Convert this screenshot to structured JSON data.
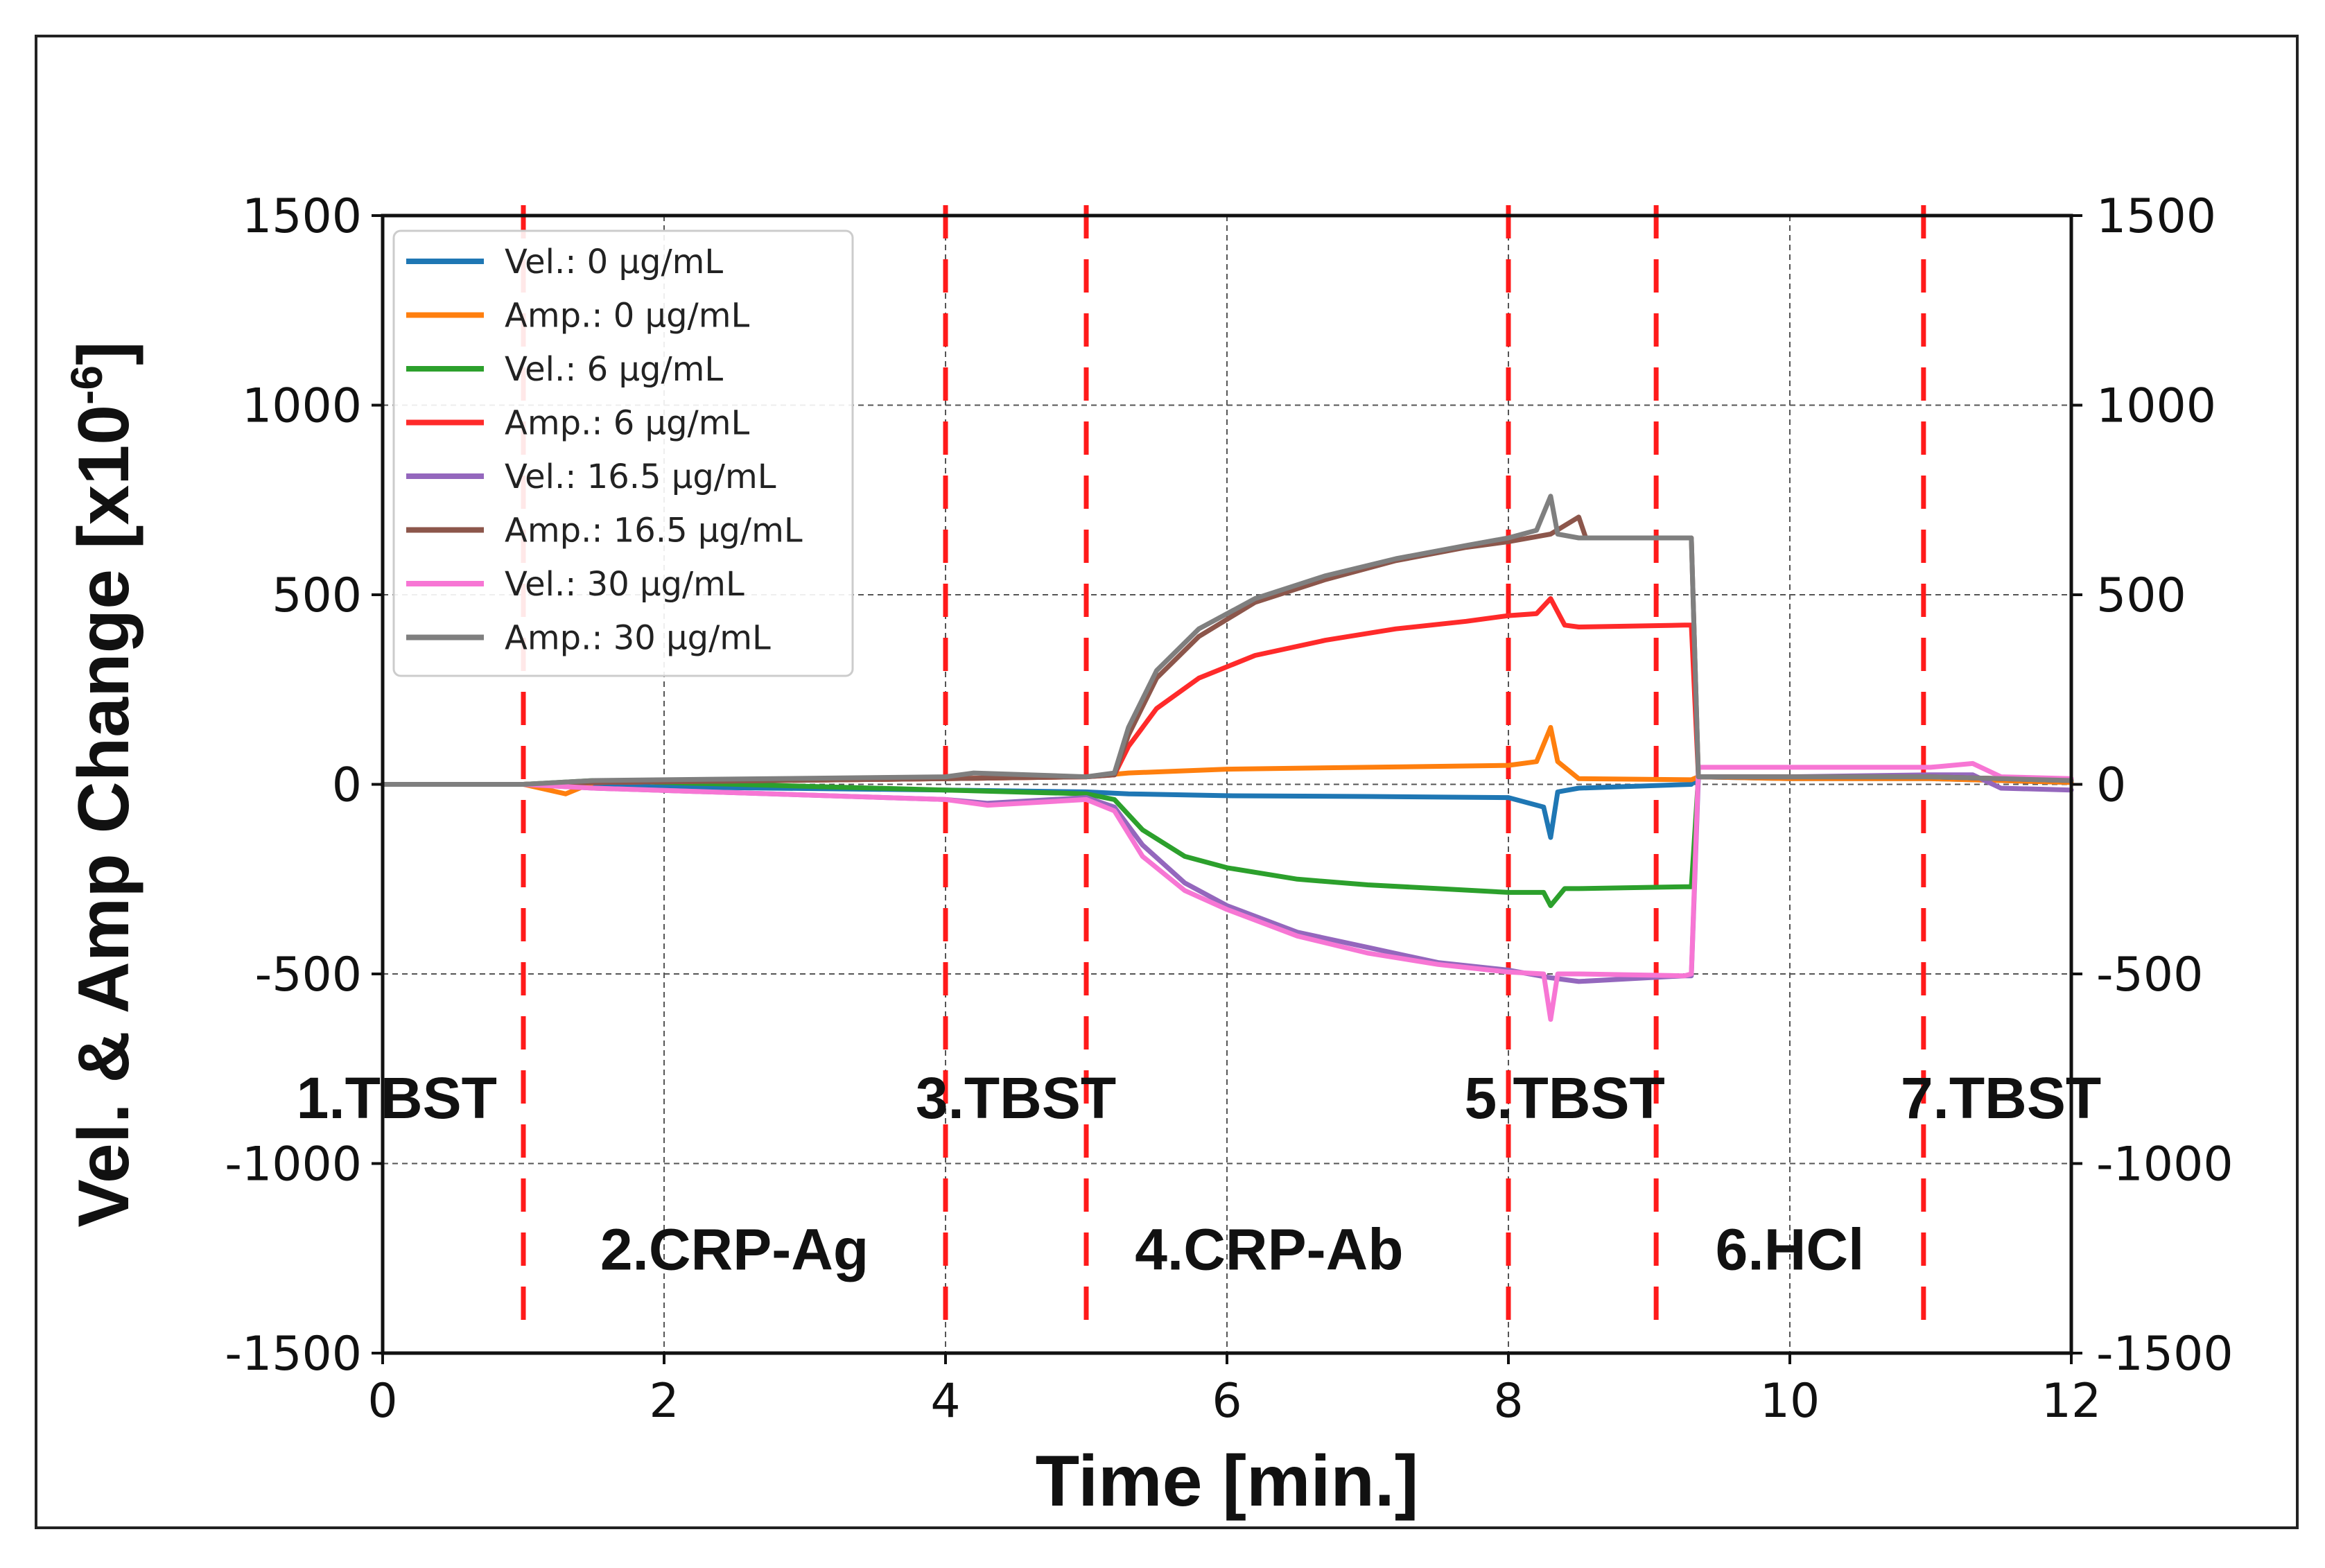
{
  "chart_data": {
    "type": "line",
    "xlabel": "Time [min.]",
    "ylabel_text": "Vel. & Amp Change [x10",
    "ylabel_exp": "-6",
    "ylabel_close": "]",
    "xlim": [
      0,
      12
    ],
    "ylim": [
      -1500,
      1500
    ],
    "x_ticks": [
      0,
      2,
      4,
      6,
      8,
      10,
      12
    ],
    "y_ticks": [
      -1500,
      -1000,
      -500,
      0,
      500,
      1000,
      1500
    ],
    "x_tick_labels": [
      "0",
      "2",
      "4",
      "6",
      "8",
      "10",
      "12"
    ],
    "y_tick_labels": [
      "-1500",
      "-1000",
      "-500",
      "0",
      "500",
      "1000",
      "1500"
    ],
    "grid": true,
    "legend_position": "top-left",
    "phase_boundaries": [
      1,
      4,
      5,
      8,
      9.05,
      10.95
    ],
    "boundary_color": "#ff1a1a",
    "phase_labels": [
      {
        "text": "1.TBST",
        "x": 0.1,
        "y": -880
      },
      {
        "text": "2.CRP-Ag",
        "x": 2.5,
        "y": -1280
      },
      {
        "text": "3.TBST",
        "x": 4.5,
        "y": -880
      },
      {
        "text": "4.CRP-Ab",
        "x": 6.3,
        "y": -1280
      },
      {
        "text": "5.TBST",
        "x": 8.4,
        "y": -880
      },
      {
        "text": "6.HCl",
        "x": 10.0,
        "y": -1280
      },
      {
        "text": "7.TBST",
        "x": 11.5,
        "y": -880
      }
    ],
    "series": [
      {
        "name": "Vel.: 0 μg/mL",
        "color": "#1f77b4",
        "x": [
          0,
          1,
          1.5,
          4,
          5,
          5.3,
          6,
          7,
          8,
          8.25,
          8.3,
          8.35,
          8.5,
          9.3,
          9.35,
          10,
          11,
          11.5,
          12
        ],
        "y": [
          0,
          0,
          -5,
          -15,
          -20,
          -25,
          -30,
          -32,
          -35,
          -60,
          -140,
          -20,
          -10,
          0,
          20,
          15,
          15,
          10,
          5
        ]
      },
      {
        "name": "Amp.: 0 μg/mL",
        "color": "#ff7f0e",
        "x": [
          0,
          1,
          1.3,
          1.5,
          4,
          5,
          5.3,
          6,
          7,
          8,
          8.2,
          8.3,
          8.35,
          8.5,
          9.3,
          9.35,
          10,
          11,
          11.5,
          12
        ],
        "y": [
          0,
          0,
          -25,
          5,
          15,
          20,
          30,
          40,
          45,
          50,
          60,
          150,
          60,
          15,
          12,
          20,
          15,
          15,
          10,
          5
        ]
      },
      {
        "name": "Vel.: 6 μg/mL",
        "color": "#2ca02c",
        "x": [
          0,
          1,
          1.5,
          4,
          5,
          5.2,
          5.4,
          5.7,
          6,
          6.5,
          7,
          7.5,
          8,
          8.25,
          8.3,
          8.4,
          8.5,
          9.25,
          9.3,
          9.35,
          10,
          11,
          11.5,
          12
        ],
        "y": [
          0,
          0,
          10,
          -15,
          -25,
          -40,
          -120,
          -190,
          -220,
          -250,
          -265,
          -275,
          -285,
          -285,
          -320,
          -275,
          -275,
          -270,
          -270,
          20,
          20,
          20,
          15,
          10
        ]
      },
      {
        "name": "Amp.: 6 μg/mL",
        "color": "#ff2a2a",
        "x": [
          0,
          1,
          1.5,
          4,
          5,
          5.2,
          5.3,
          5.5,
          5.8,
          6.2,
          6.7,
          7.2,
          7.7,
          8,
          8.2,
          8.3,
          8.4,
          8.5,
          9.25,
          9.3,
          9.35,
          10,
          11,
          11.5,
          12
        ],
        "y": [
          0,
          0,
          5,
          15,
          20,
          25,
          100,
          200,
          280,
          340,
          380,
          410,
          430,
          445,
          450,
          490,
          420,
          415,
          420,
          420,
          20,
          20,
          20,
          15,
          10
        ]
      },
      {
        "name": "Vel.: 16.5 μg/mL",
        "color": "#9467bd",
        "x": [
          0,
          1,
          1.5,
          4,
          4.3,
          5,
          5.2,
          5.4,
          5.7,
          6,
          6.5,
          7,
          7.5,
          8,
          8.3,
          8.5,
          9.25,
          9.3,
          9.35,
          10,
          11,
          11.3,
          11.5,
          12
        ],
        "y": [
          0,
          0,
          -10,
          -40,
          -50,
          -35,
          -60,
          -160,
          -260,
          -320,
          -390,
          -430,
          -470,
          -490,
          -510,
          -520,
          -505,
          -505,
          20,
          20,
          25,
          25,
          -10,
          -15
        ]
      },
      {
        "name": "Amp.: 16.5 μg/mL",
        "color": "#8c564b",
        "x": [
          0,
          1,
          1.5,
          4,
          5,
          5.2,
          5.3,
          5.5,
          5.8,
          6.2,
          6.7,
          7.2,
          7.7,
          8,
          8.3,
          8.5,
          8.55,
          8.6,
          9.25,
          9.3,
          9.35,
          10,
          11,
          11.5,
          12
        ],
        "y": [
          0,
          0,
          5,
          15,
          20,
          25,
          130,
          280,
          390,
          480,
          540,
          590,
          625,
          640,
          660,
          705,
          650,
          650,
          650,
          650,
          20,
          20,
          20,
          15,
          10
        ]
      },
      {
        "name": "Vel.: 30 μg/mL",
        "color": "#f776d4",
        "x": [
          0,
          1,
          1.5,
          4,
          4.3,
          5,
          5.2,
          5.4,
          5.7,
          6,
          6.5,
          7,
          7.5,
          8,
          8.25,
          8.3,
          8.35,
          8.5,
          9.25,
          9.3,
          9.35,
          10,
          11,
          11.3,
          11.5,
          12
        ],
        "y": [
          0,
          0,
          -10,
          -40,
          -55,
          -40,
          -70,
          -190,
          -280,
          -330,
          -400,
          -445,
          -475,
          -495,
          -500,
          -620,
          -500,
          -500,
          -505,
          -500,
          45,
          45,
          45,
          55,
          20,
          15
        ]
      },
      {
        "name": "Amp.: 30 μg/mL",
        "color": "#7f7f7f",
        "x": [
          0,
          1,
          1.5,
          4,
          4.2,
          5,
          5.2,
          5.3,
          5.5,
          5.8,
          6.2,
          6.7,
          7.2,
          7.7,
          8,
          8.2,
          8.3,
          8.35,
          8.5,
          9.25,
          9.3,
          9.35,
          10,
          11,
          11.5,
          12
        ],
        "y": [
          0,
          0,
          10,
          20,
          30,
          20,
          30,
          150,
          300,
          410,
          490,
          550,
          595,
          630,
          650,
          670,
          760,
          660,
          650,
          650,
          650,
          20,
          20,
          20,
          15,
          10
        ]
      }
    ]
  }
}
